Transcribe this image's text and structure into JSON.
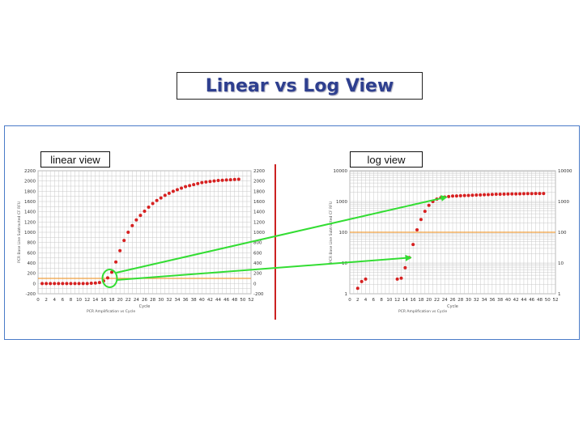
{
  "title": "Linear vs Log View",
  "tags": {
    "linear": "linear view",
    "log": "log view"
  },
  "colors": {
    "curve": "#d62020",
    "threshold": "#f0a040",
    "arrow": "#33dd33",
    "grid": "#c8c8c8",
    "title": "#2e3f8f",
    "frame": "#4a7bc8",
    "divider": "#cc2222"
  },
  "chart_data": [
    {
      "type": "scatter",
      "title": "linear view",
      "xlabel": "Cycle",
      "ylabel": "PCR Base Line Subtracted CF RFU",
      "caption": "PCR Amplification vs Cycle",
      "x_ticks": [
        0,
        2,
        4,
        6,
        8,
        10,
        12,
        14,
        16,
        18,
        20,
        22,
        24,
        26,
        28,
        30,
        32,
        34,
        36,
        38,
        40,
        42,
        44,
        46,
        48,
        50,
        52
      ],
      "y_ticks": [
        -200,
        0,
        200,
        400,
        600,
        800,
        1000,
        1200,
        1400,
        1600,
        1800,
        2000,
        2200
      ],
      "xlim": [
        0,
        52
      ],
      "ylim": [
        -200,
        2200
      ],
      "threshold": 100,
      "x": [
        1,
        2,
        3,
        4,
        5,
        6,
        7,
        8,
        9,
        10,
        11,
        12,
        13,
        14,
        15,
        16,
        17,
        18,
        19,
        20,
        21,
        22,
        23,
        24,
        25,
        26,
        27,
        28,
        29,
        30,
        31,
        32,
        33,
        34,
        35,
        36,
        37,
        38,
        39,
        40,
        41,
        42,
        43,
        44,
        45,
        46,
        47,
        48,
        49
      ],
      "y": [
        0,
        0,
        0,
        0,
        0,
        0,
        0,
        0,
        0,
        0,
        0,
        0,
        5,
        10,
        20,
        50,
        110,
        220,
        420,
        640,
        840,
        1000,
        1130,
        1240,
        1330,
        1410,
        1490,
        1560,
        1620,
        1670,
        1720,
        1760,
        1800,
        1830,
        1860,
        1890,
        1910,
        1930,
        1950,
        1970,
        1980,
        1990,
        2000,
        2010,
        2015,
        2020,
        2025,
        2030,
        2035
      ]
    },
    {
      "type": "scatter",
      "title": "log view",
      "xlabel": "Cycle",
      "ylabel": "PCR Base Line Subtracted CF RFU",
      "caption": "PCR Amplification vs Cycle",
      "log_scale_y": true,
      "x_ticks": [
        0,
        2,
        4,
        6,
        8,
        10,
        12,
        14,
        16,
        18,
        20,
        22,
        24,
        26,
        28,
        30,
        32,
        34,
        36,
        38,
        40,
        42,
        44,
        46,
        48,
        50,
        52
      ],
      "y_ticks": [
        1,
        10,
        100,
        1000,
        10000
      ],
      "xlim": [
        0,
        52
      ],
      "ylim": [
        1,
        10000
      ],
      "threshold": 100,
      "x": [
        2,
        3,
        4,
        12,
        13,
        14,
        15,
        16,
        17,
        18,
        19,
        20,
        21,
        22,
        23,
        24,
        25,
        26,
        27,
        28,
        29,
        30,
        31,
        32,
        33,
        34,
        35,
        36,
        37,
        38,
        39,
        40,
        41,
        42,
        43,
        44,
        45,
        46,
        47,
        48,
        49
      ],
      "y": [
        1.5,
        2.5,
        3,
        3,
        3.2,
        7,
        15,
        40,
        120,
        260,
        480,
        750,
        1000,
        1200,
        1320,
        1400,
        1450,
        1500,
        1520,
        1540,
        1560,
        1580,
        1600,
        1620,
        1640,
        1660,
        1680,
        1700,
        1720,
        1730,
        1740,
        1750,
        1760,
        1770,
        1780,
        1790,
        1800,
        1810,
        1815,
        1820,
        1825
      ]
    }
  ]
}
